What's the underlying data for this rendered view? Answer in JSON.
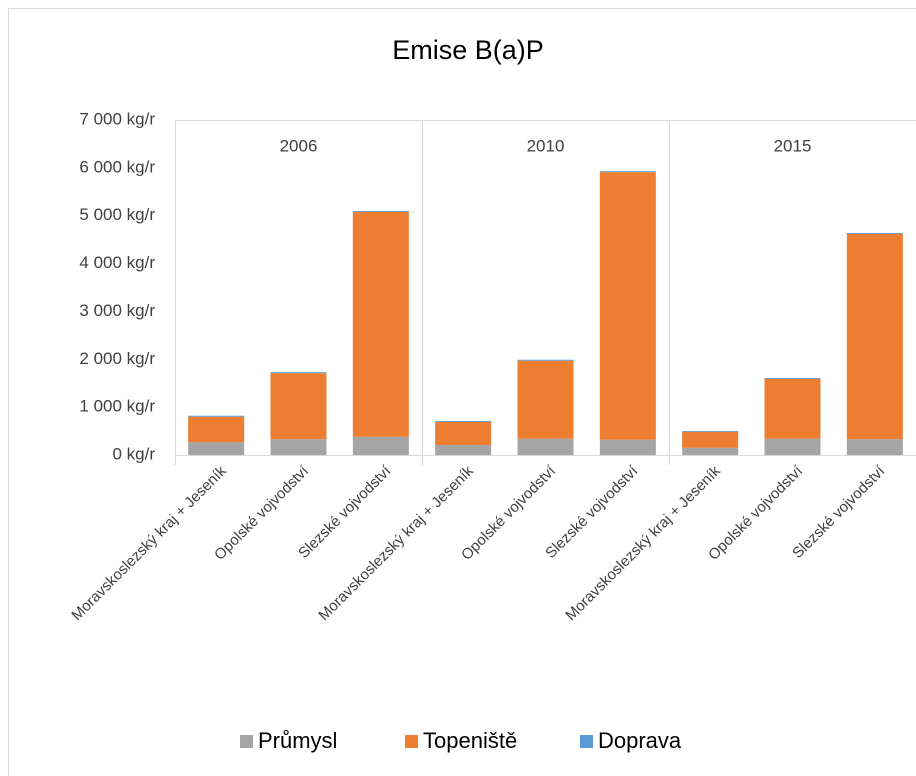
{
  "chart_data": {
    "type": "stacked_bar",
    "title": "Emise B(a)P",
    "groups": [
      "2006",
      "2010",
      "2015"
    ],
    "categories": [
      "Moravskoslezský kraj + Jeseník",
      "Opolské vojvodství",
      "Slezské vojvodství",
      "Moravskoslezský kraj + Jeseník",
      "Opolské vojvodství",
      "Slezské vojvodství",
      "Moravskoslezský kraj + Jeseník",
      "Opolské vojvodství",
      "Slezské vojvodství"
    ],
    "series": [
      {
        "name": "Průmysl",
        "color": "#a5a5a5",
        "values": [
          270,
          330,
          380,
          210,
          340,
          320,
          150,
          340,
          330
        ]
      },
      {
        "name": "Topeniště",
        "color": "#ed7d31",
        "values": [
          530,
          1380,
          4700,
          480,
          1630,
          5590,
          330,
          1250,
          4290
        ]
      },
      {
        "name": "Doprava",
        "color": "#5b9bd5",
        "values": [
          20,
          20,
          20,
          20,
          20,
          20,
          20,
          20,
          20
        ]
      }
    ],
    "ylim": [
      0,
      7000
    ],
    "yticks": [
      {
        "value": 0,
        "label": "0 kg/r"
      },
      {
        "value": 1000,
        "label": "1 000 kg/r"
      },
      {
        "value": 2000,
        "label": "2 000 kg/r"
      },
      {
        "value": 3000,
        "label": "3 000 kg/r"
      },
      {
        "value": 4000,
        "label": "4 000 kg/r"
      },
      {
        "value": 5000,
        "label": "5 000 kg/r"
      },
      {
        "value": 6000,
        "label": "6 000 kg/r"
      },
      {
        "value": 7000,
        "label": "7 000 kg/r"
      }
    ],
    "grid": false,
    "legend": "bottom"
  }
}
